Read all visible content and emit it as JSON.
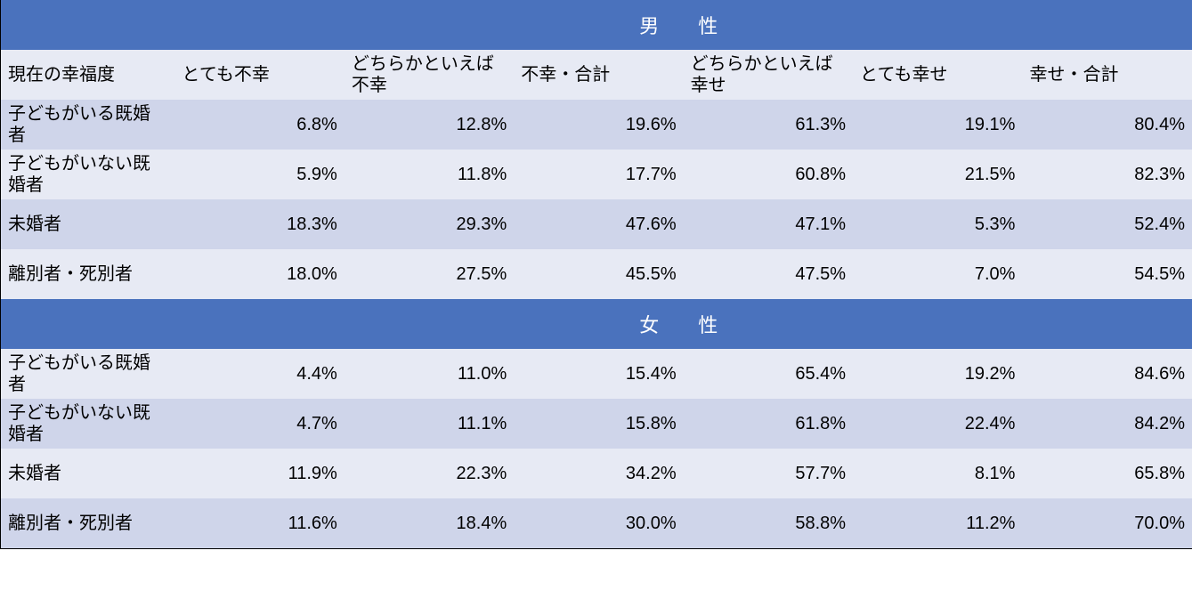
{
  "table": {
    "type": "table",
    "header_bg": "#4a72bd",
    "header_fg": "#ffffff",
    "row_colors": [
      "#e7eaf4",
      "#cfd5ea"
    ],
    "font_size_header": 22,
    "font_size_cell": 20,
    "row_header": "現在の幸福度",
    "columns": [
      "とても不幸",
      "どちらかといえば不幸",
      "不幸・合計",
      "どちらかといえば幸せ",
      "とても幸せ",
      "幸せ・合計"
    ],
    "sections": [
      {
        "title": "男　性",
        "rows": [
          {
            "label": "子どもがいる既婚者",
            "values": [
              "6.8%",
              "12.8%",
              "19.6%",
              "61.3%",
              "19.1%",
              "80.4%"
            ]
          },
          {
            "label": "子どもがいない既婚者",
            "values": [
              "5.9%",
              "11.8%",
              "17.7%",
              "60.8%",
              "21.5%",
              "82.3%"
            ]
          },
          {
            "label": "未婚者",
            "values": [
              "18.3%",
              "29.3%",
              "47.6%",
              "47.1%",
              "5.3%",
              "52.4%"
            ]
          },
          {
            "label": "離別者・死別者",
            "values": [
              "18.0%",
              "27.5%",
              "45.5%",
              "47.5%",
              "7.0%",
              "54.5%"
            ]
          }
        ]
      },
      {
        "title": "女　性",
        "rows": [
          {
            "label": "子どもがいる既婚者",
            "values": [
              "4.4%",
              "11.0%",
              "15.4%",
              "65.4%",
              "19.2%",
              "84.6%"
            ]
          },
          {
            "label": "子どもがいない既婚者",
            "values": [
              "4.7%",
              "11.1%",
              "15.8%",
              "61.8%",
              "22.4%",
              "84.2%"
            ]
          },
          {
            "label": "未婚者",
            "values": [
              "11.9%",
              "22.3%",
              "34.2%",
              "57.7%",
              "8.1%",
              "65.8%"
            ]
          },
          {
            "label": "離別者・死別者",
            "values": [
              "11.6%",
              "18.4%",
              "30.0%",
              "58.8%",
              "11.2%",
              "70.0%"
            ]
          }
        ]
      }
    ]
  }
}
